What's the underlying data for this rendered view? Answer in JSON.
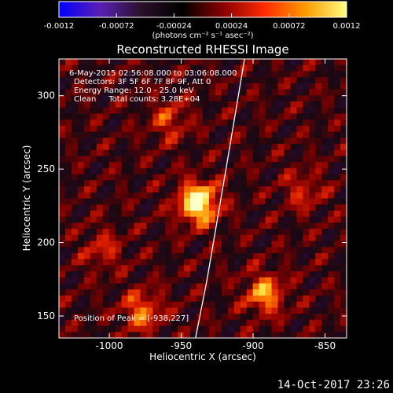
{
  "colorbar": {
    "tick_labels": [
      "-0.0012",
      "-0.00072",
      "-0.00024",
      "0.00024",
      "0.00072",
      "0.0012"
    ],
    "range": [
      -0.0012,
      0.0012
    ],
    "unit_label": "(photons cm⁻² s⁻¹ asec⁻²)",
    "colors": [
      "#0000ff",
      "#5a1fb4",
      "#2a102a",
      "#000000",
      "#8a0000",
      "#ff2a00",
      "#ff9a00",
      "#ffff80"
    ]
  },
  "chart_data": {
    "type": "heatmap",
    "title": "Reconstructed RHESSI Image",
    "xlabel": "Heliocentric X (arcsec)",
    "ylabel": "Heliocentric Y (arcsec)",
    "xlim": [
      -1035,
      -835
    ],
    "ylim": [
      135,
      325
    ],
    "xticks": [
      -1000,
      -950,
      -900,
      -850
    ],
    "yticks": [
      150,
      200,
      250,
      300
    ],
    "xtick_labels": [
      "-1000",
      "-950",
      "-900",
      "-850"
    ],
    "ytick_labels": [
      "150",
      "200",
      "250",
      "300"
    ],
    "annotations": [
      "6-May-2015 02:56:08.000 to 03:06:08.000",
      "Detectors: 3F 5F 6F 7F 8F 9F, Att 0",
      "Energy Range: 12.0 - 25.0 keV",
      "Clean     Total counts: 3.28E+04"
    ],
    "peak": {
      "x": -938,
      "y": 227,
      "label": "Position of Peak = [-938,227]"
    },
    "sources": [
      {
        "x": -938,
        "y": 227,
        "intensity": 1.0
      },
      {
        "x": -892,
        "y": 165,
        "intensity": 0.6
      },
      {
        "x": -977,
        "y": 153,
        "intensity": 0.5
      },
      {
        "x": -958,
        "y": 283,
        "intensity": 0.35
      },
      {
        "x": -1005,
        "y": 195,
        "intensity": 0.3
      },
      {
        "x": -865,
        "y": 235,
        "intensity": 0.3
      }
    ],
    "limb": [
      [
        -940,
        135
      ],
      [
        -932,
        175
      ],
      [
        -925,
        215
      ],
      [
        -918,
        255
      ],
      [
        -912,
        290
      ],
      [
        -906,
        325
      ]
    ],
    "grid": false
  },
  "footer": {
    "timestamp": "14-Oct-2017 23:26"
  }
}
